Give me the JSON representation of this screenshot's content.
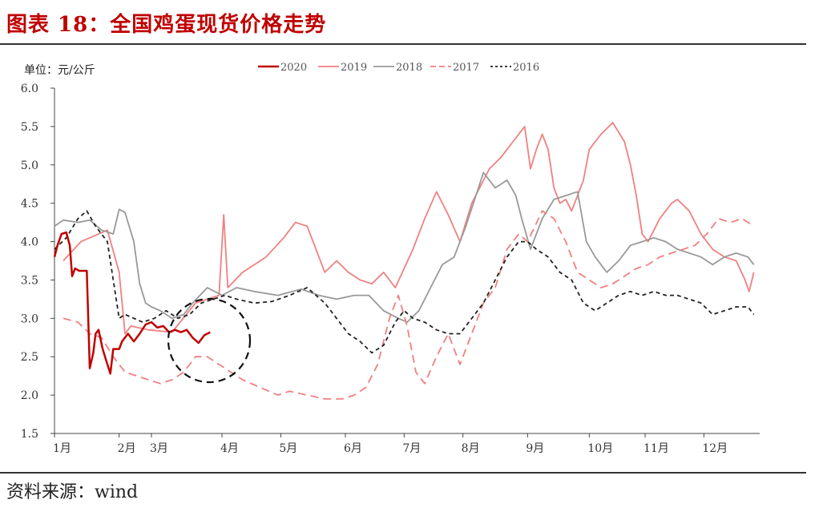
{
  "title": "图表 18：全国鸡蛋现货价格走势",
  "source": "资料来源：wind",
  "chart_data": {
    "type": "line",
    "unit_label": "单位：元/公斤",
    "ylim": [
      1.5,
      6.0
    ],
    "yticks": [
      "6.0",
      "5.5",
      "5.0",
      "4.5",
      "4.0",
      "3.5",
      "3.0",
      "2.5",
      "2.0",
      "1.5"
    ],
    "xlim": [
      0,
      12
    ],
    "xticks": [
      {
        "label": "1月",
        "pos": 0
      },
      {
        "label": "2月",
        "pos": 1.1
      },
      {
        "label": "3月",
        "pos": 1.65
      },
      {
        "label": "4月",
        "pos": 2.85
      },
      {
        "label": "5月",
        "pos": 3.85
      },
      {
        "label": "6月",
        "pos": 4.95
      },
      {
        "label": "7月",
        "pos": 5.95
      },
      {
        "label": "8月",
        "pos": 6.95
      },
      {
        "label": "9月",
        "pos": 8.05
      },
      {
        "label": "10月",
        "pos": 9.1
      },
      {
        "label": "11月",
        "pos": 10.05
      },
      {
        "label": "12月",
        "pos": 11.05
      }
    ],
    "grid": false,
    "legend_position": "top",
    "series": [
      {
        "name": "2020",
        "color": "#c00000",
        "width": 2.5,
        "dash": "",
        "x": [
          0.0,
          0.05,
          0.12,
          0.2,
          0.26,
          0.3,
          0.35,
          0.42,
          0.48,
          0.55,
          0.6,
          0.66,
          0.7,
          0.75,
          0.82,
          0.9,
          0.95,
          1.0,
          1.05,
          1.1,
          1.15,
          1.25,
          1.35,
          1.45,
          1.55,
          1.65,
          1.75,
          1.85,
          1.95,
          2.05,
          2.15,
          2.25,
          2.35,
          2.45,
          2.55,
          2.65
        ],
        "y": [
          3.8,
          3.95,
          4.1,
          4.12,
          3.95,
          3.55,
          3.65,
          3.62,
          3.62,
          3.62,
          2.35,
          2.55,
          2.8,
          2.85,
          2.6,
          2.4,
          2.28,
          2.6,
          2.6,
          2.6,
          2.7,
          2.8,
          2.7,
          2.8,
          2.92,
          2.95,
          2.88,
          2.9,
          2.82,
          2.85,
          2.82,
          2.85,
          2.75,
          2.68,
          2.78,
          2.82
        ]
      },
      {
        "name": "2019",
        "color": "#f08080",
        "width": 1.8,
        "dash": "",
        "x": [
          0.15,
          0.45,
          0.9,
          1.1,
          1.2,
          1.3,
          1.6,
          2.0,
          2.4,
          2.8,
          2.88,
          2.95,
          3.2,
          3.6,
          3.9,
          4.1,
          4.3,
          4.45,
          4.6,
          4.8,
          5.0,
          5.2,
          5.4,
          5.6,
          5.8,
          5.95,
          6.1,
          6.3,
          6.5,
          6.7,
          6.9,
          7.1,
          7.4,
          7.6,
          7.8,
          8.0,
          8.1,
          8.2,
          8.3,
          8.4,
          8.5,
          8.6,
          8.7,
          8.8,
          8.9,
          9.0,
          9.1,
          9.3,
          9.5,
          9.7,
          9.8,
          9.9,
          10.0,
          10.1,
          10.2,
          10.3,
          10.4,
          10.5,
          10.6,
          10.8,
          11.0,
          11.2,
          11.4,
          11.6,
          11.75,
          11.82,
          11.9
        ],
        "y": [
          3.75,
          4.0,
          4.15,
          3.6,
          2.8,
          2.9,
          2.85,
          2.82,
          3.2,
          3.3,
          4.35,
          3.4,
          3.6,
          3.8,
          4.05,
          4.25,
          4.2,
          3.9,
          3.6,
          3.75,
          3.6,
          3.5,
          3.45,
          3.6,
          3.4,
          3.65,
          3.9,
          4.3,
          4.65,
          4.35,
          4.0,
          4.5,
          4.95,
          5.1,
          5.3,
          5.5,
          4.95,
          5.2,
          5.4,
          5.2,
          4.7,
          4.5,
          4.55,
          4.4,
          4.6,
          4.8,
          5.2,
          5.4,
          5.55,
          5.3,
          5.0,
          4.6,
          4.1,
          4.0,
          4.15,
          4.3,
          4.4,
          4.5,
          4.55,
          4.4,
          4.1,
          3.9,
          3.8,
          3.75,
          3.5,
          3.35,
          3.6
        ]
      },
      {
        "name": "2018",
        "color": "#999999",
        "width": 1.8,
        "dash": "",
        "x": [
          0.0,
          0.15,
          0.4,
          0.6,
          0.8,
          1.0,
          1.1,
          1.2,
          1.35,
          1.45,
          1.55,
          1.65,
          1.8,
          2.0,
          2.2,
          2.35,
          2.6,
          2.85,
          3.1,
          3.4,
          3.8,
          4.2,
          4.5,
          4.8,
          5.1,
          5.35,
          5.6,
          5.85,
          6.0,
          6.2,
          6.4,
          6.6,
          6.8,
          7.0,
          7.3,
          7.5,
          7.7,
          7.85,
          7.95,
          8.1,
          8.3,
          8.5,
          8.7,
          8.9,
          9.05,
          9.2,
          9.4,
          9.6,
          9.8,
          10.0,
          10.2,
          10.4,
          10.6,
          10.8,
          11.0,
          11.2,
          11.4,
          11.6,
          11.8,
          11.9
        ],
        "y": [
          4.2,
          4.28,
          4.25,
          4.28,
          4.15,
          4.1,
          4.42,
          4.38,
          4.0,
          3.45,
          3.2,
          3.15,
          3.1,
          3.0,
          3.05,
          3.2,
          3.4,
          3.3,
          3.4,
          3.35,
          3.3,
          3.38,
          3.3,
          3.25,
          3.3,
          3.3,
          3.1,
          3.0,
          2.95,
          3.1,
          3.4,
          3.7,
          3.8,
          4.2,
          4.9,
          4.7,
          4.8,
          4.6,
          4.3,
          3.9,
          4.3,
          4.55,
          4.6,
          4.65,
          4.0,
          3.8,
          3.6,
          3.75,
          3.95,
          4.0,
          4.05,
          4.0,
          3.9,
          3.85,
          3.8,
          3.7,
          3.8,
          3.85,
          3.8,
          3.7
        ]
      },
      {
        "name": "2017",
        "color": "#f08080",
        "width": 1.8,
        "dash": "10,6",
        "x": [
          0.15,
          0.4,
          0.6,
          0.8,
          1.0,
          1.2,
          1.4,
          1.6,
          1.8,
          2.0,
          2.2,
          2.4,
          2.6,
          2.8,
          3.0,
          3.2,
          3.5,
          3.8,
          4.0,
          4.3,
          4.6,
          4.9,
          5.1,
          5.3,
          5.5,
          5.7,
          5.85,
          6.0,
          6.15,
          6.3,
          6.5,
          6.7,
          6.9,
          7.1,
          7.3,
          7.5,
          7.7,
          7.9,
          8.05,
          8.3,
          8.5,
          8.7,
          8.9,
          9.1,
          9.3,
          9.5,
          9.7,
          9.9,
          10.1,
          10.3,
          10.5,
          10.7,
          10.9,
          11.1,
          11.3,
          11.5,
          11.7,
          11.9
        ],
        "y": [
          3.0,
          2.95,
          2.8,
          2.75,
          2.5,
          2.3,
          2.25,
          2.2,
          2.15,
          2.2,
          2.3,
          2.5,
          2.5,
          2.4,
          2.3,
          2.2,
          2.1,
          2.0,
          2.05,
          2.0,
          1.95,
          1.95,
          2.0,
          2.1,
          2.4,
          3.0,
          3.3,
          2.9,
          2.3,
          2.15,
          2.5,
          2.8,
          2.4,
          2.8,
          3.2,
          3.4,
          3.9,
          4.1,
          4.0,
          4.4,
          4.3,
          4.0,
          3.6,
          3.5,
          3.4,
          3.45,
          3.55,
          3.65,
          3.7,
          3.8,
          3.85,
          3.9,
          3.95,
          4.1,
          4.3,
          4.25,
          4.3,
          4.2
        ]
      },
      {
        "name": "2016",
        "color": "#222222",
        "width": 1.8,
        "dash": "5,4",
        "x": [
          0.0,
          0.2,
          0.4,
          0.55,
          0.7,
          0.9,
          1.0,
          1.1,
          1.2,
          1.35,
          1.5,
          1.7,
          1.9,
          2.1,
          2.3,
          2.5,
          2.7,
          2.9,
          3.1,
          3.4,
          3.7,
          4.0,
          4.3,
          4.6,
          4.8,
          5.0,
          5.2,
          5.4,
          5.6,
          5.8,
          5.95,
          6.1,
          6.3,
          6.5,
          6.7,
          6.9,
          7.1,
          7.3,
          7.5,
          7.7,
          7.9,
          8.05,
          8.2,
          8.4,
          8.6,
          8.8,
          9.0,
          9.2,
          9.4,
          9.6,
          9.8,
          10.0,
          10.2,
          10.4,
          10.6,
          10.8,
          11.0,
          11.2,
          11.4,
          11.6,
          11.8,
          11.9
        ],
        "y": [
          3.9,
          4.05,
          4.3,
          4.4,
          4.2,
          4.0,
          3.5,
          3.0,
          3.05,
          3.0,
          2.95,
          3.0,
          3.1,
          3.0,
          3.05,
          3.2,
          3.25,
          3.3,
          3.25,
          3.2,
          3.22,
          3.3,
          3.4,
          3.2,
          3.0,
          2.8,
          2.7,
          2.55,
          2.65,
          2.95,
          3.1,
          3.0,
          2.95,
          2.85,
          2.8,
          2.8,
          3.0,
          3.2,
          3.5,
          3.8,
          4.0,
          4.0,
          3.9,
          3.8,
          3.6,
          3.5,
          3.2,
          3.1,
          3.2,
          3.3,
          3.35,
          3.3,
          3.35,
          3.3,
          3.3,
          3.25,
          3.2,
          3.05,
          3.1,
          3.15,
          3.15,
          3.05
        ]
      }
    ]
  }
}
